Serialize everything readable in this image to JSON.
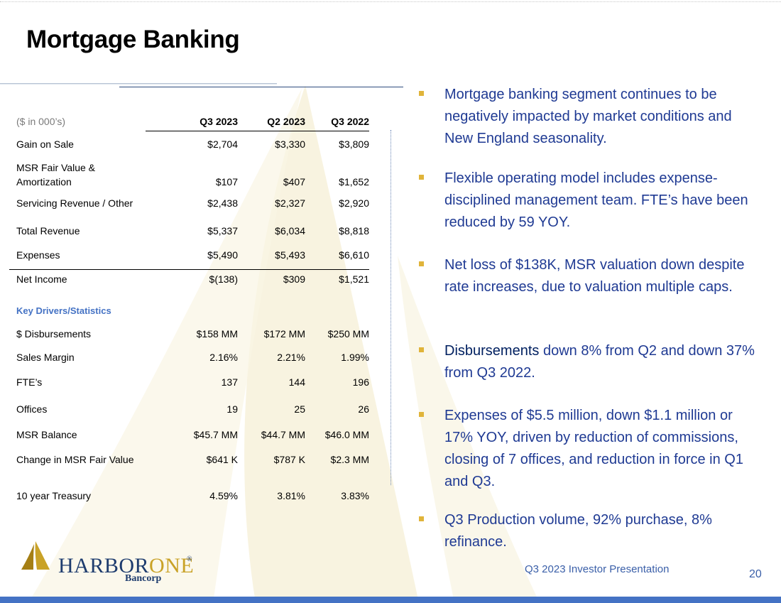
{
  "slide": {
    "title": "Mortgage Banking",
    "footer": "Q3 2023 Investor Presentation",
    "page_number": "20"
  },
  "colors": {
    "accent": "#4472c4",
    "bullet_text": "#1f3a93",
    "bullet_marker": "#e0b43a",
    "watermark": "#f6efd6"
  },
  "table": {
    "header": {
      "label": "($ in 000’s)",
      "cols": [
        "Q3 2023",
        "Q2 2023",
        "Q3 2022"
      ]
    },
    "rows": [
      {
        "label": "Gain on Sale",
        "values": [
          "$2,704",
          "$3,330",
          "$3,809"
        ]
      },
      {
        "label": "MSR Fair Value &",
        "label2": "Amortization",
        "values": [
          "$107",
          "$407",
          "$1,652"
        ]
      },
      {
        "label": "Servicing Revenue / Other",
        "values": [
          "$2,438",
          "$2,327",
          "$2,920"
        ]
      },
      {
        "label": "Total Revenue",
        "values": [
          "$5,337",
          "$6,034",
          "$8,818"
        ]
      },
      {
        "label": "Expenses",
        "values": [
          "$5,490",
          "$5,493",
          "$6,610"
        ]
      },
      {
        "label": "Net Income",
        "values": [
          "$(138)",
          "$309",
          "$1,521"
        ]
      }
    ],
    "section_title": "Key Drivers/Statistics",
    "stats": [
      {
        "label": "$ Disbursements",
        "values": [
          "$158 MM",
          "$172 MM",
          "$250 MM"
        ]
      },
      {
        "label": "Sales Margin",
        "values": [
          "2.16%",
          "2.21%",
          "1.99%"
        ]
      },
      {
        "label": "FTE’s",
        "values": [
          "137",
          "144",
          "196"
        ]
      },
      {
        "label": "Offices",
        "values": [
          "19",
          "25",
          "26"
        ]
      },
      {
        "label": "MSR Balance",
        "values": [
          "$45.7 MM",
          "$44.7 MM",
          "$46.0 MM"
        ]
      },
      {
        "label": "Change in MSR Fair Value",
        "values": [
          "$641 K",
          "$787 K",
          "$2.3 MM"
        ]
      },
      {
        "label": "10 year Treasury",
        "values": [
          "4.59%",
          "3.81%",
          "3.83%"
        ]
      }
    ]
  },
  "bullets": [
    "Mortgage banking segment continues to be negatively impacted by market conditions and New England seasonality.",
    "Flexible operating model includes expense-disciplined management team. FTE’s have been reduced by 59 YOY.",
    "Net loss of $138K, MSR valuation down despite rate increases, due to valuation multiple caps.",
    {
      "lead": "Disbursements",
      "rest": " down 8% from Q2 and down 37% from Q3 2022."
    },
    "Expenses of $5.5 million, down $1.1 million or 17% YOY, driven by reduction of commissions, closing of 7 offices, and reduction in force in Q1 and Q3.",
    "Q3 Production volume, 92% purchase, 8% refinance."
  ],
  "logo": {
    "name_part1": "HARBOR",
    "name_part2": "ONE",
    "registered": "®",
    "subtitle": "Bancorp"
  }
}
